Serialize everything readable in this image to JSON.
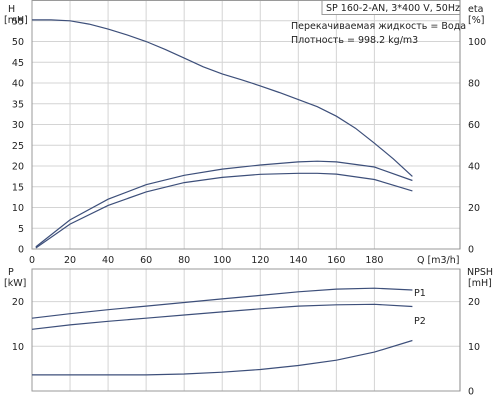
{
  "model_info": "SP 160-2-AN, 3*400 V, 50Hz",
  "fluid": "Перекачиваемая жидкость = Вода",
  "density": "Плотность = 998.2 kg/m3",
  "chart_data": [
    {
      "type": "line",
      "xlabel": "Q [m3/h]",
      "x_ticks": [
        0,
        20,
        40,
        60,
        80,
        100,
        120,
        140,
        160,
        180
      ],
      "xlim": [
        0,
        225
      ],
      "left_axis": {
        "label_line1": "H",
        "label_line2": "[mH]",
        "ylim": [
          0,
          60
        ],
        "ticks": [
          0,
          5,
          10,
          15,
          20,
          25,
          30,
          35,
          40,
          45,
          50,
          55
        ]
      },
      "right_axis": {
        "label_line1": "eta",
        "label_line2": "[%]",
        "ylim": [
          0,
          120
        ],
        "ticks": [
          0,
          20,
          40,
          60,
          80,
          100
        ]
      },
      "grid": true,
      "series": [
        {
          "axis": "left",
          "x": [
            0,
            10,
            20,
            30,
            40,
            50,
            60,
            70,
            80,
            90,
            100,
            110,
            120,
            130,
            140,
            150,
            160,
            170,
            180,
            190,
            200
          ],
          "values": [
            55.2,
            55.2,
            55,
            54.2,
            53,
            51.6,
            50,
            48.1,
            46,
            43.9,
            42.2,
            40.8,
            39.3,
            37.7,
            36,
            34.3,
            32,
            29.1,
            25.5,
            21.7,
            17.5
          ]
        },
        {
          "axis": "right",
          "x": [
            2,
            20,
            40,
            60,
            80,
            100,
            120,
            140,
            150,
            160,
            180,
            200
          ],
          "values": [
            1,
            14,
            24,
            31,
            35.5,
            38.5,
            40.5,
            42,
            42.3,
            42,
            39.5,
            33
          ]
        },
        {
          "axis": "right",
          "x": [
            2,
            20,
            40,
            60,
            80,
            100,
            120,
            140,
            150,
            160,
            180,
            200
          ],
          "values": [
            0.5,
            12,
            21,
            27.5,
            32,
            34.5,
            36,
            36.5,
            36.5,
            36.1,
            33.5,
            28
          ]
        }
      ]
    },
    {
      "type": "line",
      "left_axis": {
        "label_line1": "P",
        "label_line2": "[kW]",
        "ylim": [
          0,
          27.3
        ],
        "ticks": [
          10,
          20
        ]
      },
      "right_axis": {
        "label_line1": "NPSH",
        "label_line2": "[mH]",
        "ylim": [
          0,
          27.3
        ],
        "ticks": [
          0,
          10,
          20
        ]
      },
      "grid": true,
      "series": [
        {
          "name": "P1",
          "axis": "left",
          "x": [
            0,
            20,
            40,
            60,
            80,
            100,
            120,
            140,
            160,
            180,
            200
          ],
          "values": [
            16.3,
            17.3,
            18.2,
            19,
            19.8,
            20.6,
            21.4,
            22.2,
            22.8,
            23,
            22.6
          ]
        },
        {
          "name": "P2",
          "axis": "left",
          "x": [
            0,
            20,
            40,
            60,
            80,
            100,
            120,
            140,
            160,
            180,
            200
          ],
          "values": [
            13.8,
            14.8,
            15.6,
            16.3,
            17,
            17.7,
            18.4,
            19,
            19.3,
            19.4,
            18.9
          ]
        },
        {
          "axis": "right",
          "x": [
            0,
            20,
            40,
            60,
            80,
            100,
            120,
            140,
            160,
            180,
            200
          ],
          "values": [
            3.6,
            3.6,
            3.6,
            3.6,
            3.8,
            4.2,
            4.8,
            5.7,
            6.9,
            8.7,
            11.3
          ]
        }
      ]
    }
  ]
}
